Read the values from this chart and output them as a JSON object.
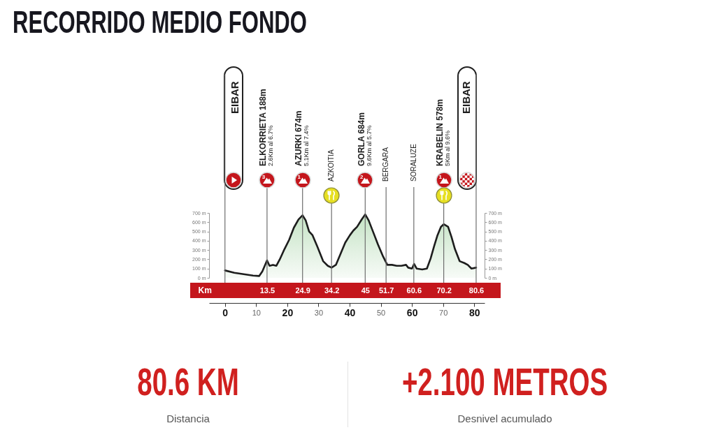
{
  "chart_data": {
    "type": "area",
    "title": "RECORRIDO MEDIO FONDO",
    "color": "#c5e3c5",
    "x": [
      0,
      3,
      6,
      9,
      11,
      12,
      13.5,
      14.3,
      15.4,
      16.5,
      17.6,
      19.1,
      20.6,
      22.1,
      23.6,
      24.9,
      25.9,
      27,
      28.1,
      29.6,
      31.5,
      33,
      34.2,
      35.6,
      37.1,
      38.6,
      40.1,
      41.2,
      42.4,
      43.9,
      45,
      46.1,
      47.6,
      49.1,
      50.6,
      52.1,
      53.6,
      55.1,
      56.6,
      58.1,
      58.8,
      60,
      60.7,
      61.5,
      63.3,
      64.8,
      66,
      67.1,
      68.2,
      69.3,
      70.2,
      71.6,
      72.7,
      73.8,
      75.3,
      76.8,
      77.9,
      79.1,
      80.6
    ],
    "values": [
      80,
      55,
      40,
      25,
      20,
      70,
      188,
      130,
      140,
      130,
      200,
      310,
      410,
      540,
      630,
      674,
      620,
      500,
      460,
      340,
      180,
      130,
      110,
      140,
      260,
      380,
      460,
      510,
      550,
      630,
      684,
      620,
      490,
      360,
      240,
      140,
      140,
      130,
      130,
      140,
      110,
      100,
      150,
      100,
      90,
      100,
      210,
      340,
      460,
      550,
      578,
      550,
      440,
      310,
      180,
      160,
      140,
      100,
      110
    ],
    "xlim": [
      -5.1,
      83.3
    ],
    "xticks": [
      0,
      10,
      20,
      30,
      40,
      50,
      60,
      70,
      80
    ],
    "x2label": "Km",
    "x2lim": [
      -5.1,
      83.3
    ],
    "x2ticks": [
      13.5,
      24.9,
      34.2,
      45,
      51.7,
      60.6,
      70.2,
      80.6
    ],
    "ylim": [
      0,
      700
    ],
    "yticks": [
      {
        "value": 0,
        "label": "0 m"
      },
      {
        "value": 100,
        "label": "100 m"
      },
      {
        "value": 200,
        "label": "200 m"
      },
      {
        "value": 300,
        "label": "300 m"
      },
      {
        "value": 400,
        "label": "400 m"
      },
      {
        "value": 500,
        "label": "500 m"
      },
      {
        "value": 600,
        "label": "600 m"
      },
      {
        "value": 700,
        "label": "700 m"
      }
    ],
    "y2lim": [
      0,
      700
    ],
    "y2ticks": [
      {
        "value": 0,
        "label": "0 m"
      },
      {
        "value": 100,
        "label": "100 m"
      },
      {
        "value": 200,
        "label": "200 m"
      },
      {
        "value": 300,
        "label": "300 m"
      },
      {
        "value": 400,
        "label": "400 m"
      },
      {
        "value": 500,
        "label": "500 m"
      },
      {
        "value": 600,
        "label": "600 m"
      },
      {
        "value": 700,
        "label": "700 m"
      }
    ],
    "ref_lines": [
      {
        "axis": "x",
        "value": 0,
        "label": "EIBAR"
      },
      {
        "axis": "x",
        "value": 13.5,
        "label": "ELKORRIETA 188m\n2.6Km al 6.7%"
      },
      {
        "axis": "x",
        "value": 24.9,
        "label": "AZURKI 674m\n5.1Km al 7.4%"
      },
      {
        "axis": "x",
        "value": 34.2,
        "label": "AZKOITIA"
      },
      {
        "axis": "x",
        "value": 45,
        "label": "GORLA 684m\n9.6Km al 5.7%"
      },
      {
        "axis": "x",
        "value": 51.7,
        "label": "BERGARA"
      },
      {
        "axis": "x",
        "value": 60.6,
        "label": "SORALUZE"
      },
      {
        "axis": "x",
        "value": 70.2,
        "label": "KRABELIN 578m\n5Km al 9.6%"
      },
      {
        "axis": "x",
        "value": 80.6,
        "label": "EIBAR"
      }
    ],
    "annotations": [
      "3",
      "1",
      "2",
      "1",
      "80.6 KM",
      "Distancia",
      "+2.100 METROS",
      "Desnivel acumulado"
    ]
  }
}
